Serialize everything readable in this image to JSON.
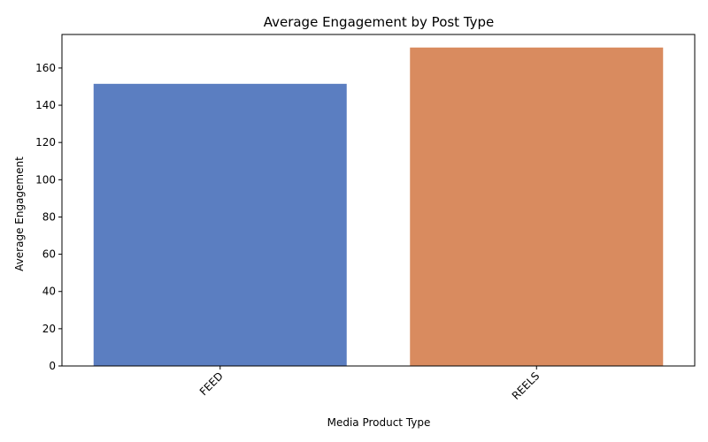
{
  "chart_data": {
    "type": "bar",
    "title": "Average Engagement by Post Type",
    "xlabel": "Media Product Type",
    "ylabel": "Average Engagement",
    "categories": [
      "FEED",
      "REELS"
    ],
    "values": [
      151.5,
      171.0
    ],
    "colors": [
      "#5b7ec1",
      "#d98b5f"
    ],
    "ylim": [
      0,
      178
    ],
    "yticks": [
      0,
      20,
      40,
      60,
      80,
      100,
      120,
      140,
      160
    ],
    "grid": false,
    "legend": "none"
  }
}
